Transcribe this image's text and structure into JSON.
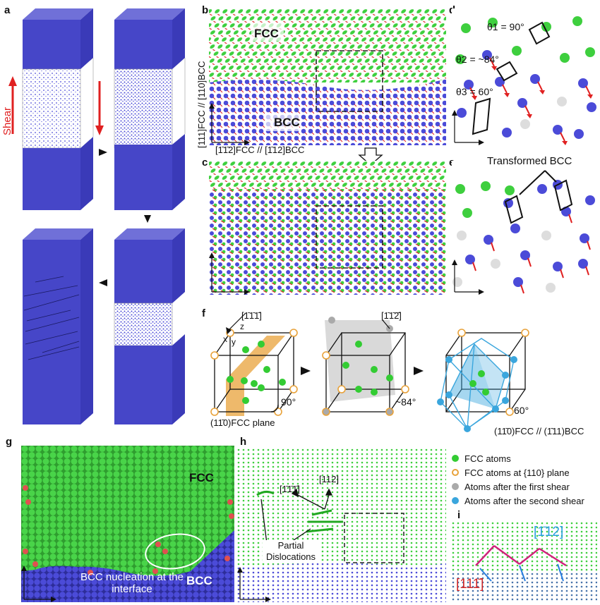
{
  "panels": {
    "a": {
      "letter": "a",
      "shear": "Shear"
    },
    "b": {
      "letter": "b",
      "fcc": "FCC",
      "bcc": "BCC",
      "orient_y": "[111]FCC // [110]BCC",
      "orient_x": "[1̄1̄2]FCC // [1̄12]BCC"
    },
    "c": {
      "letter": "c"
    },
    "d": {
      "letter": "d",
      "theta1": "θ1 = 90°",
      "theta2": "θ2 = ~84°",
      "theta3": "θ3 = 60°"
    },
    "e": {
      "letter": "e",
      "title": "Transformed BCC"
    },
    "f": {
      "letter": "f",
      "dir1": "[1̄1̄1̄]",
      "dir2": "[1̄1̄2̄]",
      "angle1": "90°",
      "angle2": "~84°",
      "angle3": "60°",
      "plane1": "(11̄0)FCC plane",
      "plane3": "(11̄0)FCC // (1̄11)BCC",
      "ax_x": "x",
      "ax_y": "y",
      "ax_z": "z"
    },
    "g": {
      "letter": "g",
      "fcc": "FCC",
      "bcc": "BCC",
      "nucleation": "BCC nucleation at the interface"
    },
    "h": {
      "letter": "h",
      "dir1": "[1̄1̄1̄]",
      "dir2": "[112]",
      "partial": "Partial Dislocations"
    },
    "i": {
      "letter": "i",
      "dir1": "[1̄12]",
      "dir2": "[111̄]"
    }
  },
  "legend": [
    {
      "label": "FCC atoms",
      "color": "#33cc33",
      "style": "filled"
    },
    {
      "label": "FCC atoms at {110} plane",
      "color": "#e8a23a",
      "style": "ring"
    },
    {
      "label": "Atoms after the first shear",
      "color": "#aaaaaa",
      "style": "filled"
    },
    {
      "label": "Atoms after the second shear",
      "color": "#3aa6dd",
      "style": "filled"
    }
  ],
  "colors": {
    "fcc": "#3ecf3e",
    "bcc": "#4b4bd8",
    "vec": "#e02020",
    "box": "#4040c8",
    "other": "#e05050"
  }
}
